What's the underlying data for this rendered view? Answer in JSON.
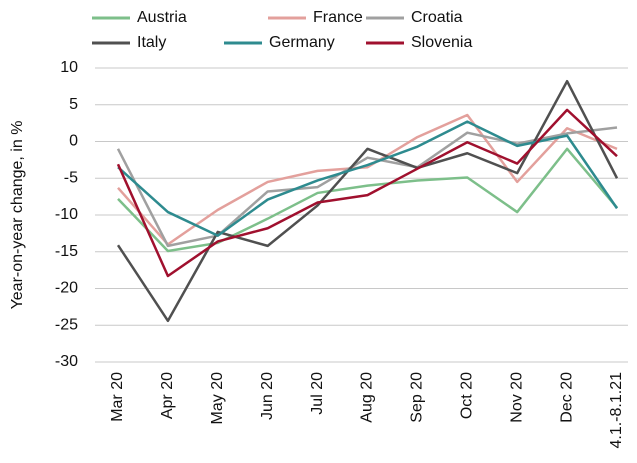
{
  "chart_data": {
    "type": "line",
    "ylabel": "Year-on-year change, in %",
    "categories": [
      "Mar 20",
      "Apr 20",
      "May 20",
      "Jun 20",
      "Jul 20",
      "Aug 20",
      "Sep 20",
      "Oct 20",
      "Nov 20",
      "Dec 20",
      "4.1.-8.1.21"
    ],
    "series": [
      {
        "name": "Austria",
        "color": "#7dbf8a",
        "values": [
          -7.8,
          -14.9,
          -13.8,
          -10.5,
          -7,
          -6,
          -5.3,
          -4.9,
          -9.6,
          -1,
          -9
        ]
      },
      {
        "name": "France",
        "color": "#e3a09c",
        "values": [
          -6.3,
          -14,
          -9.3,
          -5.5,
          -4,
          -3.5,
          0.6,
          3.6,
          -5.5,
          1.8,
          -1
        ]
      },
      {
        "name": "Croatia",
        "color": "#a0a0a0",
        "values": [
          -1,
          -14.2,
          -12.8,
          -6.8,
          -6.2,
          -2.2,
          -3.5,
          1.2,
          -0.3,
          1.1,
          1.9
        ]
      },
      {
        "name": "Italy",
        "color": "#505050",
        "values": [
          -14.1,
          -24.4,
          -12.3,
          -14.2,
          -8.7,
          -1,
          -3.6,
          -1.6,
          -4.3,
          8.2,
          -5
        ]
      },
      {
        "name": "Germany",
        "color": "#2e8b8f",
        "values": [
          -3.5,
          -9.6,
          -12.8,
          -7.9,
          -5.3,
          -3.2,
          -0.7,
          2.7,
          -0.6,
          0.8,
          -9.1
        ]
      },
      {
        "name": "Slovenia",
        "color": "#a0102e",
        "values": [
          -3.1,
          -18.3,
          -13.6,
          -11.8,
          -8.3,
          -7.3,
          -3.7,
          -0.1,
          -3,
          4.3,
          -2
        ]
      }
    ],
    "ylim": [
      -30,
      10
    ],
    "yticks": [
      -30,
      -25,
      -20,
      -15,
      -10,
      -5,
      0,
      5,
      10
    ],
    "grid": true
  }
}
